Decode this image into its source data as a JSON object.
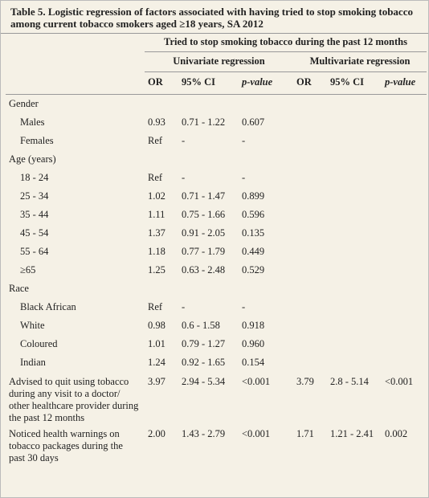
{
  "title": "Table 5. Logistic regression of factors associated with having tried to stop smoking tobacco among current tobacco smokers aged ≥18 years, SA 2012",
  "header": {
    "outcome": "Tried to stop smoking tobacco during the past 12 months",
    "groups": [
      "Univariate regression",
      "Multivariate regression"
    ],
    "columns": [
      "OR",
      "95% CI",
      "p-value",
      "OR",
      "95% CI",
      "p-value"
    ]
  },
  "sections": [
    {
      "heading": "Gender",
      "rows": [
        {
          "label": "Males",
          "values": [
            "0.93",
            "0.71 - 1.22",
            "0.607"
          ]
        },
        {
          "label": "Females",
          "values": [
            "Ref",
            "-",
            "-"
          ]
        }
      ]
    },
    {
      "heading": "Age (years)",
      "rows": [
        {
          "label": "18 - 24",
          "values": [
            "Ref",
            "-",
            "-"
          ]
        },
        {
          "label": "25 - 34",
          "values": [
            "1.02",
            "0.71 - 1.47",
            "0.899"
          ]
        },
        {
          "label": "35 - 44",
          "values": [
            "1.11",
            "0.75 - 1.66",
            "0.596"
          ]
        },
        {
          "label": "45 - 54",
          "values": [
            "1.37",
            "0.91 - 2.05",
            "0.135"
          ]
        },
        {
          "label": "55 - 64",
          "values": [
            "1.18",
            "0.77 - 1.79",
            "0.449"
          ]
        },
        {
          "label": "≥65",
          "values": [
            "1.25",
            "0.63 - 2.48",
            "0.529"
          ]
        }
      ]
    },
    {
      "heading": "Race",
      "rows": [
        {
          "label": "Black African",
          "values": [
            "Ref",
            "-",
            "-"
          ]
        },
        {
          "label": "White",
          "values": [
            "0.98",
            "0.6 - 1.58",
            "0.918"
          ]
        },
        {
          "label": "Coloured",
          "values": [
            "1.01",
            "0.79 - 1.27",
            "0.960"
          ]
        },
        {
          "label": "Indian",
          "values": [
            "1.24",
            "0.92 - 1.65",
            "0.154"
          ]
        }
      ]
    }
  ],
  "items": [
    {
      "label": "Advised to quit using tobacco during any visit to a doctor/ other healthcare provider during the past 12 months",
      "values": [
        "3.97",
        "2.94 - 5.34",
        "<0.001",
        "3.79",
        "2.8 - 5.14",
        "<0.001"
      ]
    },
    {
      "label": "Noticed health warnings on tobacco packages during the past 30 days",
      "values": [
        "2.00",
        "1.43 - 2.79",
        "<0.001",
        "1.71",
        "1.21 - 2.41",
        "0.002"
      ]
    }
  ]
}
